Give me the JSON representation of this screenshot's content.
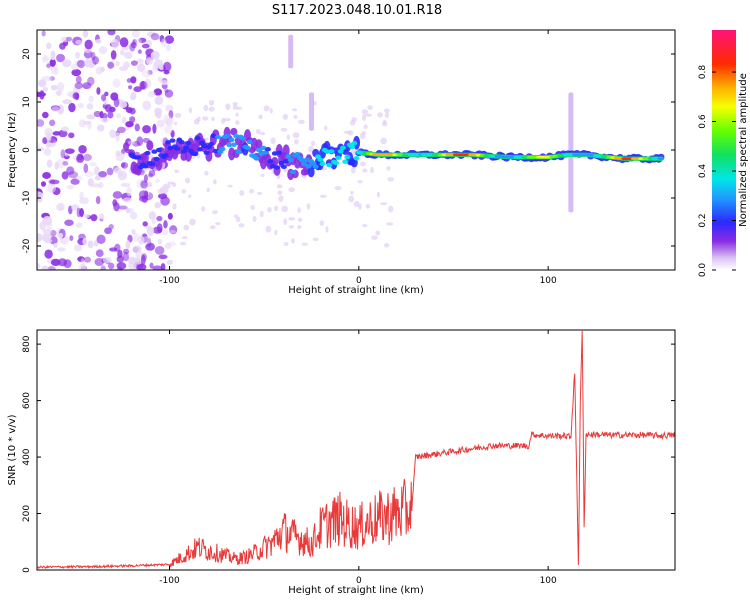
{
  "title": "S117.2023.048.10.01.R18",
  "chart_data": [
    {
      "type": "heatmap",
      "xlabel": "Height of straight line (km)",
      "ylabel": "Frequency (Hz)",
      "xlim": [
        -170,
        167
      ],
      "ylim": [
        -25,
        25
      ],
      "xticks": [
        -100,
        0,
        100
      ],
      "yticks": [
        -20,
        -10,
        0,
        10,
        20
      ],
      "colorbar": {
        "label": "Normalized spectral amplitude",
        "range": [
          0,
          0.97
        ],
        "ticks": [
          0.0,
          0.2,
          0.4,
          0.6,
          0.8
        ]
      },
      "ridge": [
        {
          "x": -120,
          "f": -2.5,
          "a": 0.25
        },
        {
          "x": -100,
          "f": 0,
          "a": 0.3
        },
        {
          "x": -80,
          "f": 1,
          "a": 0.35
        },
        {
          "x": -60,
          "f": 1.5,
          "a": 0.45
        },
        {
          "x": -45,
          "f": -2,
          "a": 0.35
        },
        {
          "x": -30,
          "f": -3,
          "a": 0.4
        },
        {
          "x": -20,
          "f": -2,
          "a": 0.5
        },
        {
          "x": -10,
          "f": -0.8,
          "a": 0.5
        },
        {
          "x": 0,
          "f": -0.5,
          "a": 0.55
        },
        {
          "x": 10,
          "f": -1,
          "a": 0.85
        },
        {
          "x": 30,
          "f": -1,
          "a": 0.95
        },
        {
          "x": 60,
          "f": -1,
          "a": 0.9
        },
        {
          "x": 80,
          "f": -1.5,
          "a": 0.8
        },
        {
          "x": 100,
          "f": -1.5,
          "a": 0.7
        },
        {
          "x": 110,
          "f": -1,
          "a": 0.6
        },
        {
          "x": 120,
          "f": -1,
          "a": 0.85
        },
        {
          "x": 140,
          "f": -1.8,
          "a": 0.9
        },
        {
          "x": 160,
          "f": -1.8,
          "a": 0.75
        }
      ],
      "vertical_streaks": [
        {
          "x": -36,
          "f_range": [
            17,
            24
          ]
        },
        {
          "x": -25,
          "f_range": [
            4,
            12
          ]
        },
        {
          "x": 112,
          "f_range": [
            -13,
            12
          ]
        }
      ]
    },
    {
      "type": "line",
      "xlabel": "Height of straight line (km)",
      "ylabel": "SNR (10 * v/v)",
      "xlim": [
        -170,
        167
      ],
      "ylim": [
        0,
        850
      ],
      "xticks": [
        -100,
        0,
        100
      ],
      "yticks": [
        0,
        200,
        400,
        600,
        800
      ],
      "series": [
        {
          "name": "SNR",
          "color": "#e83a3a",
          "x": [
            -170,
            -140,
            -120,
            -100,
            -95,
            -90,
            -85,
            -80,
            -75,
            -70,
            -65,
            -60,
            -55,
            -50,
            -45,
            -40,
            -35,
            -30,
            -25,
            -20,
            -15,
            -10,
            -5,
            0,
            5,
            10,
            15,
            20,
            25,
            28,
            30,
            40,
            50,
            60,
            70,
            80,
            90,
            91,
            100,
            110,
            112,
            114,
            116,
            117,
            118,
            119,
            120,
            125,
            130,
            140,
            150,
            160,
            167
          ],
          "y": [
            10,
            12,
            15,
            20,
            40,
            60,
            80,
            70,
            60,
            50,
            40,
            45,
            60,
            80,
            100,
            140,
            120,
            110,
            90,
            150,
            170,
            180,
            160,
            150,
            170,
            180,
            190,
            200,
            210,
            220,
            400,
            410,
            420,
            430,
            440,
            440,
            440,
            480,
            475,
            475,
            470,
            700,
            20,
            600,
            850,
            150,
            480,
            480,
            478,
            478,
            478,
            476,
            478
          ]
        }
      ]
    }
  ]
}
